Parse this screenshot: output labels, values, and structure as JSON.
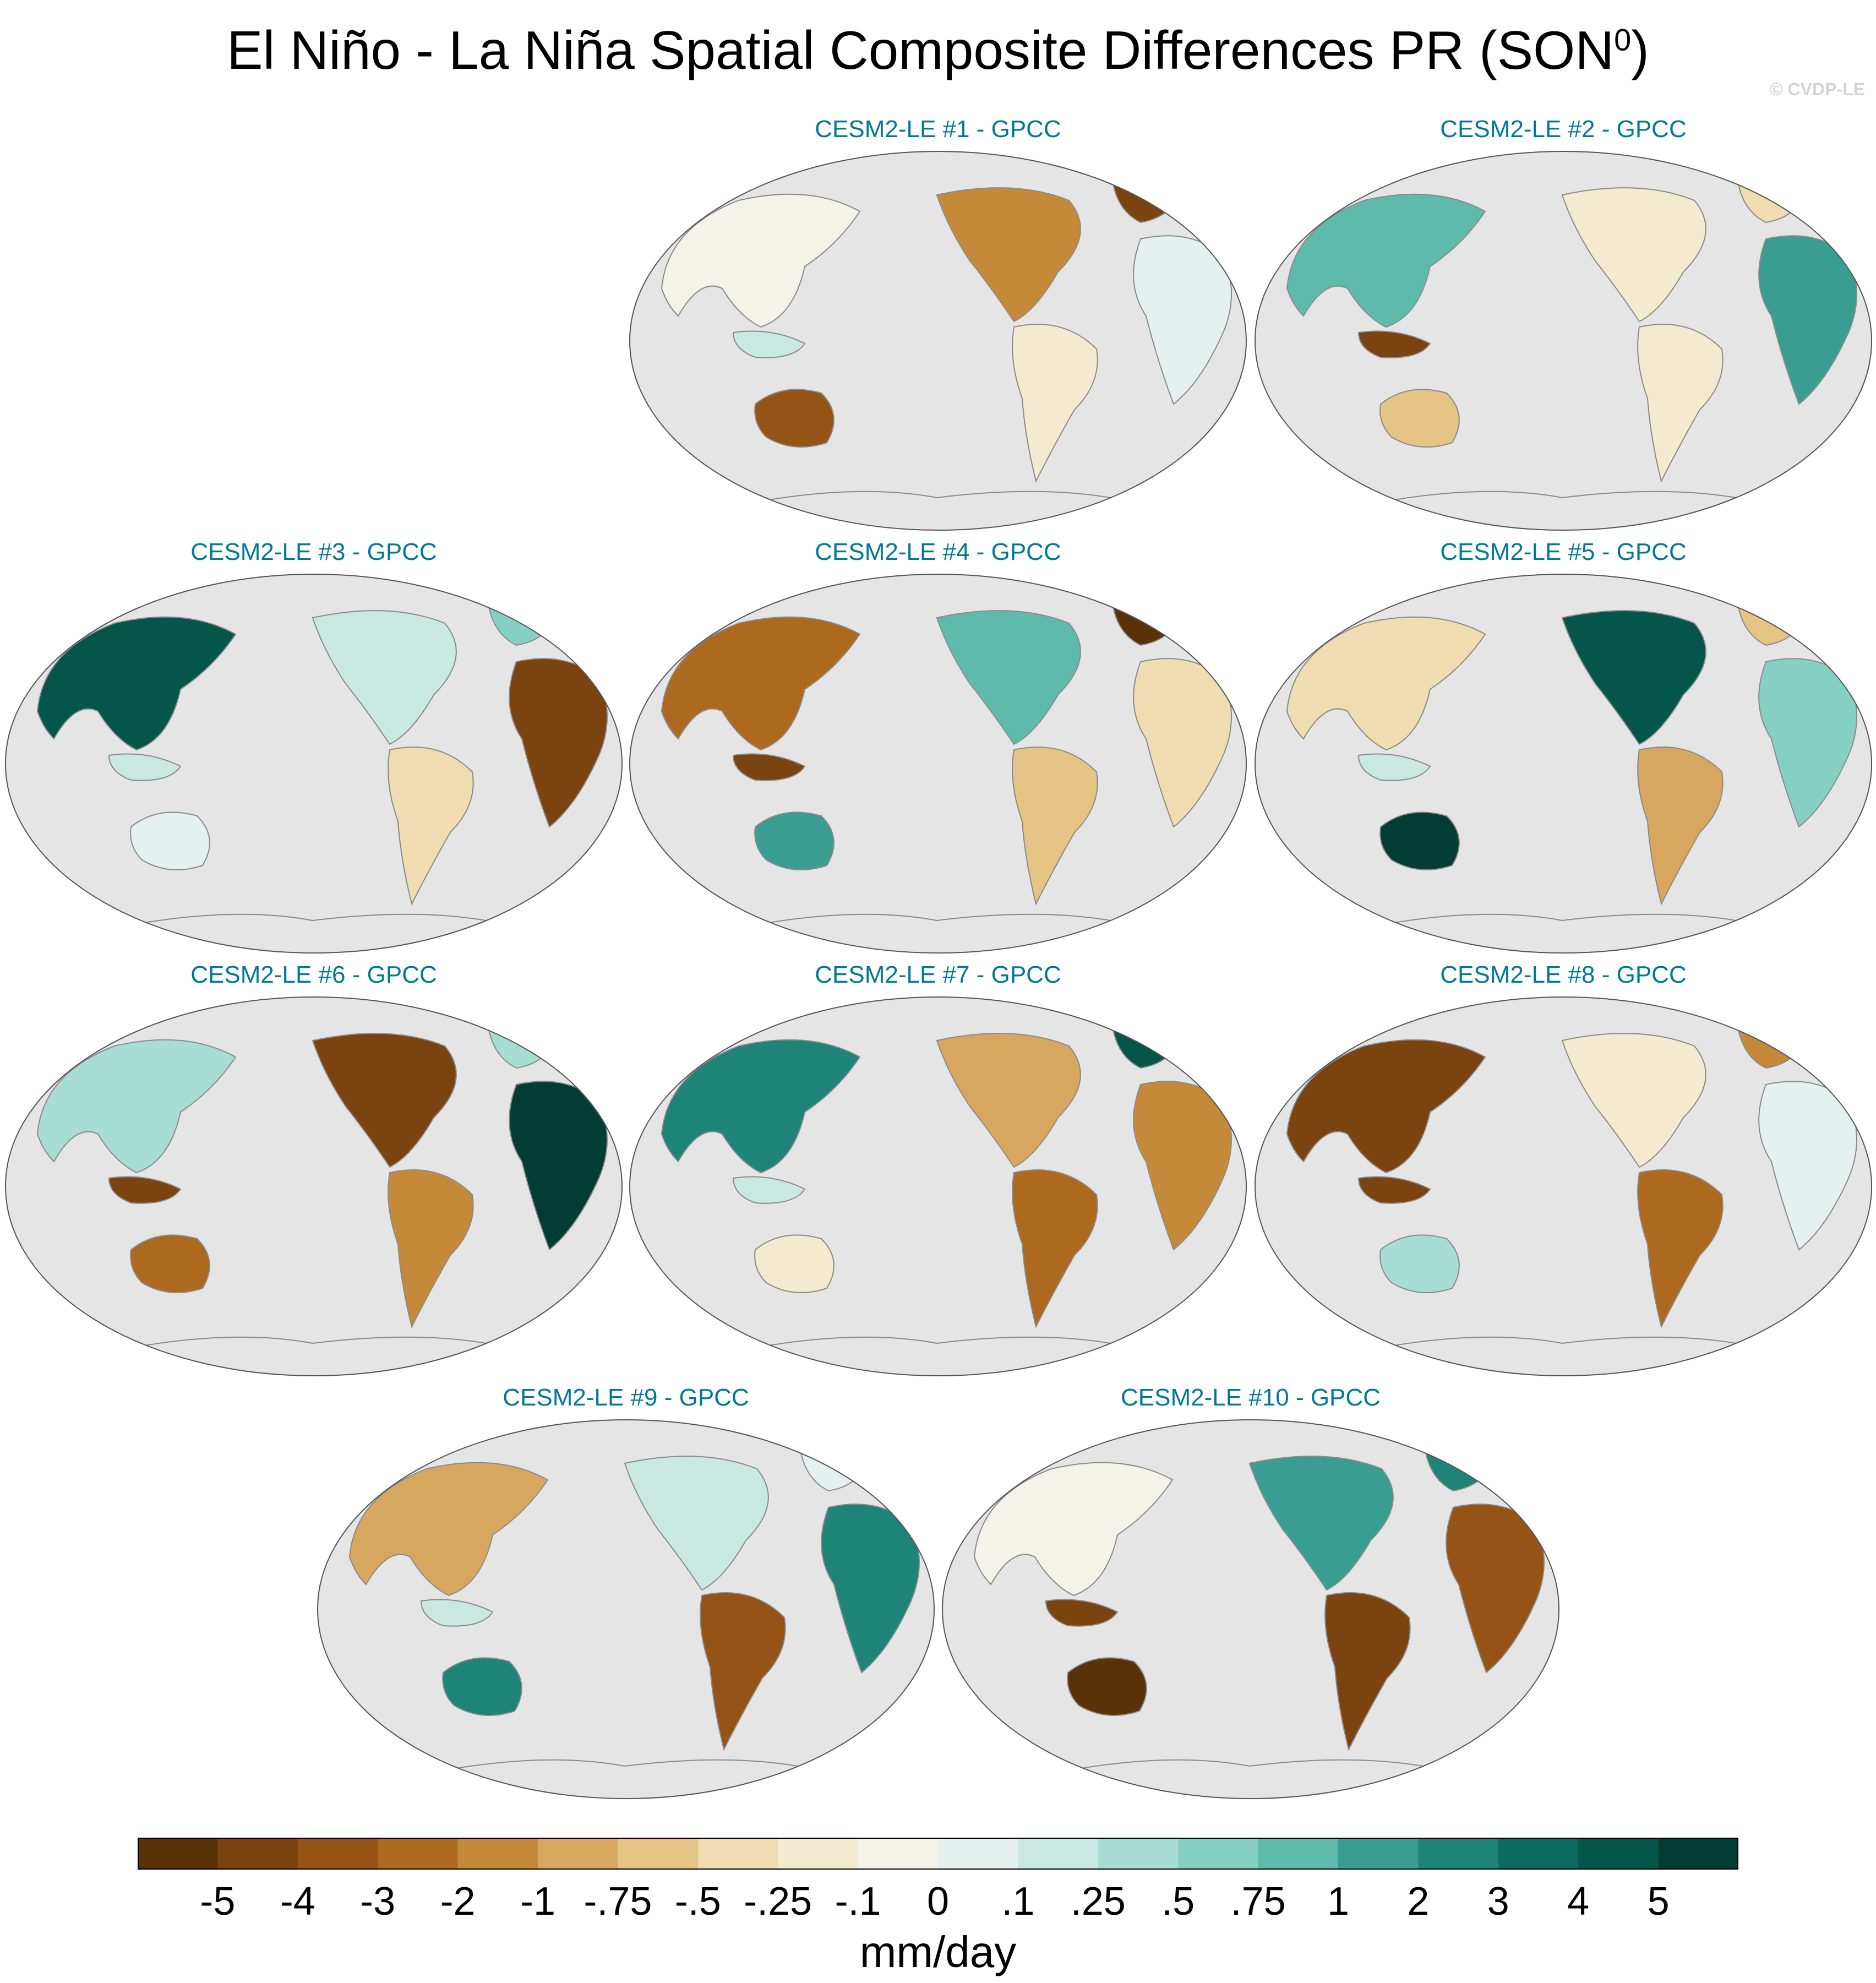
{
  "figure": {
    "title": "El Niño - La Niña Spatial Composite Differences PR (SON",
    "title_superscript": "0",
    "title_suffix": ")",
    "credit": "© CVDP-LE"
  },
  "panels": [
    {
      "title": "CESM2-LE #1 - GPCC"
    },
    {
      "title": "CESM2-LE #2 - GPCC"
    },
    {
      "title": "CESM2-LE #3 - GPCC"
    },
    {
      "title": "CESM2-LE #4 - GPCC"
    },
    {
      "title": "CESM2-LE #5 - GPCC"
    },
    {
      "title": "CESM2-LE #6 - GPCC"
    },
    {
      "title": "CESM2-LE #7 - GPCC"
    },
    {
      "title": "CESM2-LE #8 - GPCC"
    },
    {
      "title": "CESM2-LE #9 - GPCC"
    },
    {
      "title": "CESM2-LE #10 - GPCC"
    }
  ],
  "colorbar": {
    "label": "mm/day",
    "ticks": [
      "-5",
      "-4",
      "-3",
      "-2",
      "-1",
      "-.75",
      "-.5",
      "-.25",
      "-.1",
      "0",
      ".1",
      ".25",
      ".5",
      ".75",
      "1",
      "2",
      "3",
      "4",
      "5"
    ],
    "colors": [
      "#5a3208",
      "#7a4310",
      "#955415",
      "#ad6a1f",
      "#c48a3a",
      "#d7a65f",
      "#e5c486",
      "#efdcb1",
      "#f4ead0",
      "#f5f2ea",
      "#e5f1ee",
      "#c9e8e2",
      "#a8ddd3",
      "#86cfc3",
      "#5ebbac",
      "#3a9d91",
      "#1f8478",
      "#0a6a5f",
      "#04554a",
      "#023d33"
    ]
  },
  "map_style": {
    "ocean_color": "#e5e5e5",
    "coast_color": "#8a8a8a"
  }
}
